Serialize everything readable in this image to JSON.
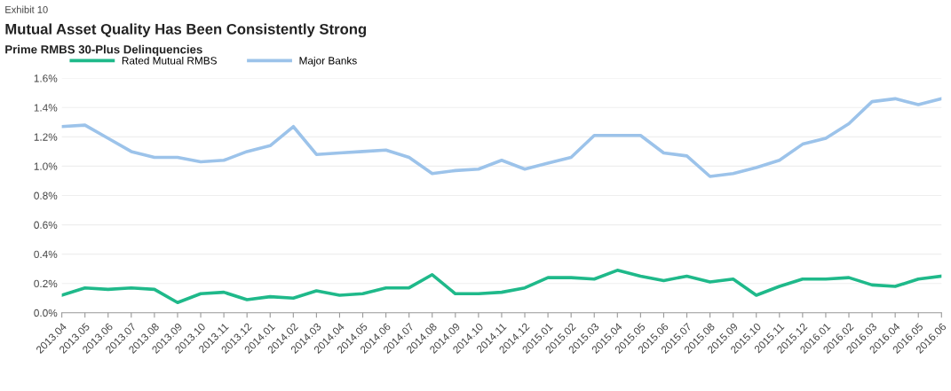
{
  "chart_data": {
    "type": "line",
    "title": "Mutual Asset Quality Has Been Consistently Strong",
    "subtitle": "Prime RMBS 30-Plus Delinquencies",
    "annotations": [
      "Exhibit 10"
    ],
    "categories": [
      "2013.04",
      "2013.05",
      "2013.06",
      "2013.07",
      "2013.08",
      "2013.09",
      "2013.10",
      "2013.11",
      "2013.12",
      "2014.01",
      "2014.02",
      "2014.03",
      "2014.04",
      "2014.05",
      "2014.06",
      "2014.07",
      "2014.08",
      "2014.09",
      "2014.10",
      "2014.11",
      "2014.12",
      "2015.01",
      "2015.02",
      "2015.03",
      "2015.04",
      "2015.05",
      "2015.06",
      "2015.07",
      "2015.08",
      "2015.09",
      "2015.10",
      "2015.11",
      "2015.12",
      "2016.01",
      "2016.02",
      "2016.03",
      "2016.04",
      "2016.05",
      "2016.06"
    ],
    "series": [
      {
        "name": "Rated Mutual RMBS",
        "color": "#1fb98a",
        "values": [
          0.12,
          0.17,
          0.16,
          0.17,
          0.16,
          0.07,
          0.13,
          0.14,
          0.09,
          0.11,
          0.1,
          0.15,
          0.12,
          0.13,
          0.17,
          0.17,
          0.26,
          0.13,
          0.13,
          0.14,
          0.17,
          0.24,
          0.24,
          0.23,
          0.29,
          0.25,
          0.22,
          0.25,
          0.21,
          0.23,
          0.12,
          0.18,
          0.23,
          0.23,
          0.24,
          0.19,
          0.18,
          0.23,
          0.25
        ]
      },
      {
        "name": "Major Banks",
        "color": "#9cc3ea",
        "values": [
          1.27,
          1.28,
          1.19,
          1.1,
          1.06,
          1.06,
          1.03,
          1.04,
          1.1,
          1.14,
          1.27,
          1.08,
          1.09,
          1.1,
          1.11,
          1.06,
          0.95,
          0.97,
          0.98,
          1.04,
          0.98,
          1.02,
          1.06,
          1.21,
          1.21,
          1.21,
          1.09,
          1.07,
          0.93,
          0.95,
          0.99,
          1.04,
          1.15,
          1.19,
          1.29,
          1.44,
          1.46,
          1.42,
          1.46
        ]
      }
    ],
    "ylim": [
      0,
      1.6
    ],
    "yticks": [
      {
        "value": 0,
        "label": "0.0%"
      },
      {
        "value": 0.2,
        "label": "0.2%"
      },
      {
        "value": 0.4,
        "label": "0.4%"
      },
      {
        "value": 0.6,
        "label": "0.6%"
      },
      {
        "value": 0.8,
        "label": "0.8%"
      },
      {
        "value": 1.0,
        "label": "1.0%"
      },
      {
        "value": 1.2,
        "label": "1.2%"
      },
      {
        "value": 1.4,
        "label": "1.4%"
      },
      {
        "value": 1.6,
        "label": "1.6%"
      }
    ],
    "grid": "y",
    "legend": "top left"
  }
}
